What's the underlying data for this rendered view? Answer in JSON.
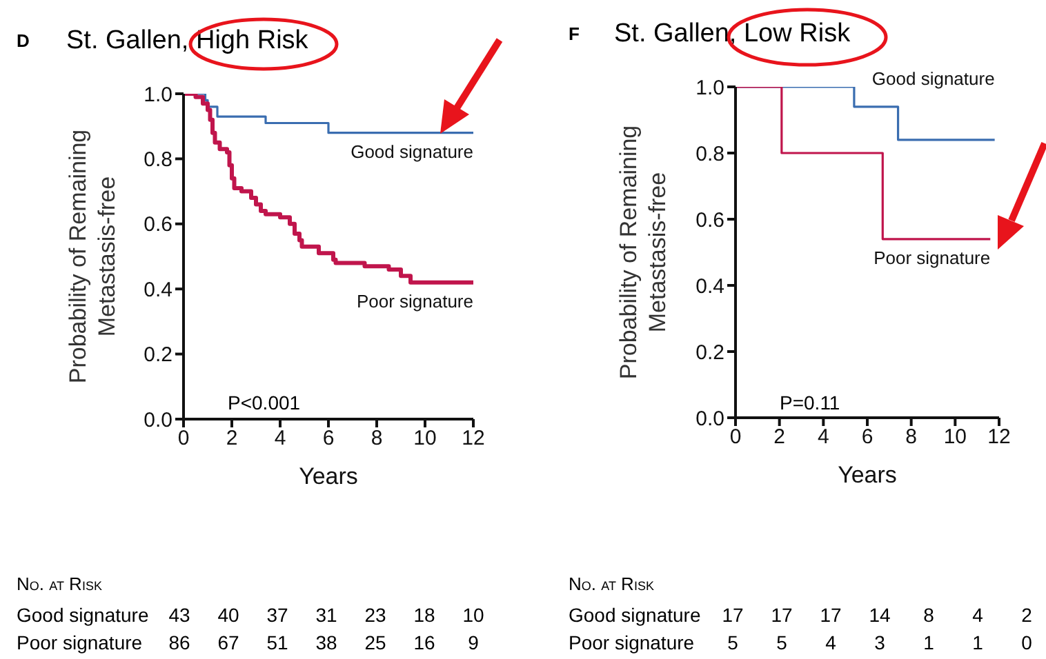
{
  "chart_data": [
    {
      "type": "step",
      "title": "St. Gallen, High Risk",
      "xlabel": "Years",
      "ylabel": "Probability of Remaining\nMetastasis-free",
      "series": [
        {
          "name": "Good signature",
          "color": "#3a6db0",
          "x": [
            0,
            0.8,
            0.9,
            1.0,
            1.4,
            3.4,
            6.0,
            12.0
          ],
          "values": [
            1.0,
            1.0,
            0.98,
            0.96,
            0.93,
            0.91,
            0.88,
            0.88
          ]
        },
        {
          "name": "Poor signature",
          "color": "#c0154c",
          "x": [
            0,
            0.5,
            0.8,
            1.0,
            1.1,
            1.2,
            1.3,
            1.5,
            1.8,
            1.9,
            2.0,
            2.1,
            2.4,
            2.8,
            3.0,
            3.2,
            3.4,
            4.0,
            4.4,
            4.6,
            4.8,
            4.9,
            5.6,
            6.2,
            6.3,
            7.5,
            8.5,
            9.0,
            9.4,
            12.0
          ],
          "values": [
            1.0,
            0.99,
            0.97,
            0.95,
            0.92,
            0.88,
            0.85,
            0.83,
            0.82,
            0.78,
            0.74,
            0.71,
            0.7,
            0.68,
            0.66,
            0.64,
            0.63,
            0.62,
            0.6,
            0.57,
            0.55,
            0.53,
            0.51,
            0.49,
            0.48,
            0.47,
            0.46,
            0.44,
            0.42,
            0.42
          ]
        }
      ],
      "xlim": [
        0,
        12
      ],
      "xticks": [
        0,
        2,
        4,
        6,
        8,
        10,
        12
      ],
      "ylim": [
        0,
        1
      ],
      "yticks": [
        {
          "value": 0,
          "label": "0.0"
        },
        {
          "value": 0.2,
          "label": "0.2"
        },
        {
          "value": 0.4,
          "label": "0.4"
        },
        {
          "value": 0.6,
          "label": "0.6"
        },
        {
          "value": 0.8,
          "label": "0.8"
        },
        {
          "value": 1,
          "label": "1.0"
        }
      ],
      "grid": false,
      "legend": false,
      "annotations": [
        "D",
        "P<0.001",
        "No. at Risk",
        "Good signature",
        "43",
        "40",
        "37",
        "31",
        "23",
        "18",
        "10",
        "Poor signature",
        "86",
        "67",
        "51",
        "38",
        "25",
        "16",
        "9"
      ]
    },
    {
      "type": "step",
      "title": "St. Gallen, Low Risk",
      "xlabel": "Years",
      "ylabel": "Probability of Remaining\nMetastasis-free",
      "series": [
        {
          "name": "Good signature",
          "color": "#3a6db0",
          "x": [
            0,
            5.4,
            7.4,
            11.8
          ],
          "values": [
            1.0,
            0.94,
            0.84,
            0.84
          ]
        },
        {
          "name": "Poor signature",
          "color": "#c0154c",
          "x": [
            0,
            2.1,
            6.7,
            11.6
          ],
          "values": [
            1.0,
            0.8,
            0.54,
            0.54
          ]
        }
      ],
      "xlim": [
        0,
        12
      ],
      "xticks": [
        0,
        2,
        4,
        6,
        8,
        10,
        12
      ],
      "ylim": [
        0,
        1
      ],
      "yticks": [
        {
          "value": 0,
          "label": "0.0"
        },
        {
          "value": 0.2,
          "label": "0.2"
        },
        {
          "value": 0.4,
          "label": "0.4"
        },
        {
          "value": 0.6,
          "label": "0.6"
        },
        {
          "value": 0.8,
          "label": "0.8"
        },
        {
          "value": 1,
          "label": "1.0"
        }
      ],
      "grid": false,
      "legend": false,
      "annotations": [
        "F",
        "P=0.11",
        "No. at Risk",
        "Good signature",
        "17",
        "17",
        "17",
        "14",
        "8",
        "4",
        "2",
        "Poor signature",
        "5",
        "5",
        "4",
        "3",
        "1",
        "1",
        "0"
      ]
    }
  ]
}
